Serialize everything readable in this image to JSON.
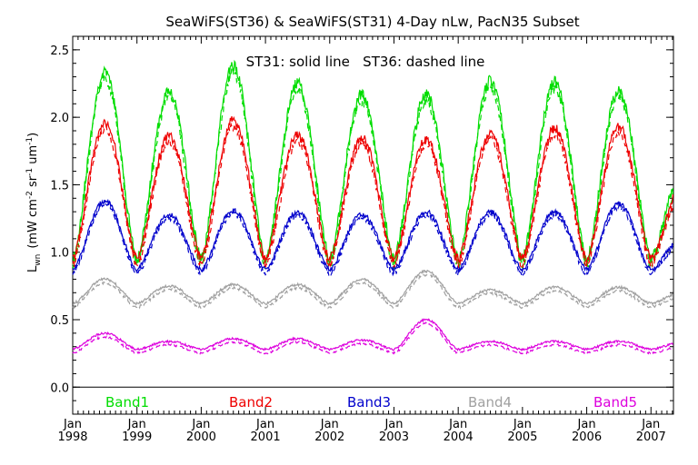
{
  "chart_data": {
    "type": "line",
    "title": "SeaWiFS(ST36) & SeaWiFS(ST31) 4-Day nLw, PacN35 Subset",
    "annotation": "ST31: solid line   ST36: dashed line",
    "ylabel": {
      "main": "L",
      "sub": "wn",
      "unit": "(mW cm",
      "e1": "-2",
      "sr": " sr",
      "e2": "-1",
      "um": " um",
      "e3": "-1",
      "close": ")"
    },
    "ylim": [
      -0.2,
      2.6
    ],
    "xlim": [
      1998.0,
      2007.35
    ],
    "yticks": [
      0.0,
      0.5,
      1.0,
      1.5,
      2.0,
      2.5
    ],
    "ytick_labels": [
      "0.0",
      "0.5",
      "1.0",
      "1.5",
      "2.0",
      "2.5"
    ],
    "xticks": [
      1998,
      1999,
      2000,
      2001,
      2002,
      2003,
      2004,
      2005,
      2006,
      2007
    ],
    "xtick_month": "Jan",
    "xtick_years": [
      "1998",
      "1999",
      "2000",
      "2001",
      "2002",
      "2003",
      "2004",
      "2005",
      "2006",
      "2007"
    ],
    "zero_line": 0.0,
    "legend_placement": "bottom inside, above x-axis",
    "series": [
      {
        "name": "Band1",
        "color": "#00dd00",
        "min": 0.95,
        "amp": 1.25,
        "peaks": [
          2.33,
          2.2,
          2.38,
          2.25,
          2.17,
          2.17,
          2.27,
          2.26,
          2.2,
          1.6
        ]
      },
      {
        "name": "Band2",
        "color": "#ee0000",
        "min": 0.95,
        "amp": 0.92,
        "peaks": [
          1.96,
          1.86,
          1.98,
          1.87,
          1.85,
          1.84,
          1.88,
          1.92,
          1.93,
          1.5
        ]
      },
      {
        "name": "Band3",
        "color": "#0000cc",
        "min": 0.87,
        "amp": 0.42,
        "peaks": [
          1.38,
          1.28,
          1.31,
          1.3,
          1.28,
          1.3,
          1.3,
          1.3,
          1.36,
          1.1
        ]
      },
      {
        "name": "Band4",
        "color": "#a0a0a0",
        "min": 0.62,
        "amp": 0.12,
        "peaks": [
          0.8,
          0.75,
          0.76,
          0.76,
          0.8,
          0.86,
          0.72,
          0.74,
          0.74,
          0.7
        ]
      },
      {
        "name": "Band5",
        "color": "#dd00dd",
        "min": 0.28,
        "amp": 0.06,
        "peaks": [
          0.4,
          0.34,
          0.36,
          0.36,
          0.35,
          0.5,
          0.34,
          0.34,
          0.34,
          0.33
        ]
      }
    ],
    "line_styles": {
      "ST31": "solid",
      "ST36": "dashed"
    }
  }
}
